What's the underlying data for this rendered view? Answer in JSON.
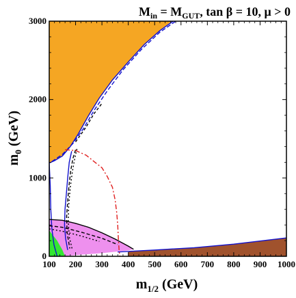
{
  "chart_data": {
    "type": "area",
    "title": {
      "prefix": "M",
      "prefix_sub": "in",
      "eq": " = M",
      "eq_sub": "GUT",
      "rest": ", tan β = 10,  μ > 0"
    },
    "xlabel": {
      "main": "m",
      "sub": "1/2",
      "unit": " (GeV)"
    },
    "ylabel": {
      "main": "m",
      "sub": "0",
      "unit": " (GeV)"
    },
    "xlim": [
      100,
      1000
    ],
    "ylim": [
      0,
      3000
    ],
    "x_ticks": [
      "100",
      "200",
      "300",
      "400",
      "500",
      "600",
      "700",
      "800",
      "900",
      "1000"
    ],
    "y_ticks": [
      "0",
      "1000",
      "2000",
      "3000"
    ],
    "x_tick_values": [
      100,
      200,
      300,
      400,
      500,
      600,
      700,
      800,
      900,
      1000
    ],
    "y_tick_values": [
      0,
      1000,
      2000,
      3000
    ],
    "grid": false,
    "colors": {
      "orange_region": "#F5A623",
      "brown_region": "#A0522D",
      "green_region": "#33E633",
      "pink_region": "#EE90EE",
      "blue_contour": "#1010CC",
      "red_contour": "#E02020",
      "black_contour": "#000000"
    },
    "regions": [
      {
        "id": "orange",
        "points": [
          [
            100,
            3000
          ],
          [
            565,
            3000
          ],
          [
            520,
            2880
          ],
          [
            460,
            2700
          ],
          [
            400,
            2480
          ],
          [
            340,
            2250
          ],
          [
            290,
            2020
          ],
          [
            250,
            1800
          ],
          [
            210,
            1560
          ],
          [
            180,
            1400
          ],
          [
            150,
            1280
          ],
          [
            120,
            1220
          ],
          [
            100,
            1190
          ]
        ]
      },
      {
        "id": "brown",
        "points": [
          [
            400,
            60
          ],
          [
            600,
            95
          ],
          [
            800,
            155
          ],
          [
            1000,
            235
          ],
          [
            1000,
            0
          ],
          [
            400,
            0
          ]
        ]
      },
      {
        "id": "pink",
        "points": [
          [
            100,
            470
          ],
          [
            150,
            460
          ],
          [
            200,
            420
          ],
          [
            250,
            370
          ],
          [
            300,
            300
          ],
          [
            350,
            220
          ],
          [
            400,
            130
          ],
          [
            420,
            90
          ],
          [
            400,
            75
          ],
          [
            300,
            40
          ],
          [
            200,
            15
          ],
          [
            150,
            0
          ],
          [
            100,
            0
          ]
        ]
      },
      {
        "id": "green",
        "points": [
          [
            100,
            330
          ],
          [
            130,
            200
          ],
          [
            150,
            80
          ],
          [
            160,
            0
          ],
          [
            100,
            0
          ]
        ]
      }
    ],
    "lines": [
      {
        "id": "blue-orange-edge",
        "color": "#1010CC",
        "dash": "",
        "points": [
          [
            100,
            1190
          ],
          [
            120,
            1220
          ],
          [
            150,
            1280
          ],
          [
            180,
            1400
          ],
          [
            210,
            1560
          ],
          [
            250,
            1800
          ],
          [
            290,
            2020
          ],
          [
            340,
            2250
          ],
          [
            400,
            2480
          ],
          [
            460,
            2700
          ],
          [
            520,
            2880
          ],
          [
            570,
            3000
          ]
        ]
      },
      {
        "id": "blue-upper-dashed",
        "color": "#1010CC",
        "dash": "6,3",
        "points": [
          [
            110,
            1210
          ],
          [
            150,
            1300
          ],
          [
            190,
            1440
          ],
          [
            230,
            1630
          ],
          [
            270,
            1860
          ],
          [
            320,
            2110
          ],
          [
            380,
            2380
          ],
          [
            450,
            2640
          ],
          [
            520,
            2860
          ],
          [
            580,
            3000
          ]
        ]
      },
      {
        "id": "blue-left-edge",
        "color": "#1010CC",
        "dash": "",
        "points": [
          [
            100,
            1190
          ],
          [
            104,
            900
          ],
          [
            106,
            600
          ],
          [
            110,
            350
          ],
          [
            118,
            150
          ],
          [
            130,
            0
          ]
        ]
      },
      {
        "id": "blue-vertical-inner",
        "color": "#1010CC",
        "dash": "",
        "points": [
          [
            185,
            1340
          ],
          [
            176,
            1200
          ],
          [
            170,
            1000
          ],
          [
            165,
            800
          ],
          [
            160,
            600
          ],
          [
            158,
            400
          ],
          [
            162,
            230
          ],
          [
            170,
            80
          ]
        ]
      },
      {
        "id": "blue-brown-edge",
        "color": "#1010CC",
        "dash": "",
        "points": [
          [
            360,
            55
          ],
          [
            500,
            80
          ],
          [
            650,
            110
          ],
          [
            800,
            155
          ],
          [
            1000,
            235
          ]
        ]
      },
      {
        "id": "black-dashed-vertical",
        "color": "#000000",
        "dash": "5,3",
        "points": [
          [
            200,
            1360
          ],
          [
            190,
            1250
          ],
          [
            182,
            1100
          ],
          [
            175,
            900
          ],
          [
            170,
            700
          ],
          [
            166,
            500
          ],
          [
            168,
            300
          ],
          [
            178,
            100
          ]
        ]
      },
      {
        "id": "black-dotted-vertical",
        "color": "#000000",
        "dash": "2,3",
        "points": [
          [
            205,
            1370
          ],
          [
            197,
            1250
          ],
          [
            188,
            1080
          ],
          [
            180,
            880
          ],
          [
            174,
            650
          ],
          [
            172,
            450
          ],
          [
            176,
            250
          ],
          [
            188,
            80
          ]
        ]
      },
      {
        "id": "black-pink-edge",
        "color": "#000000",
        "dash": "",
        "points": [
          [
            100,
            470
          ],
          [
            150,
            460
          ],
          [
            200,
            420
          ],
          [
            250,
            370
          ],
          [
            300,
            300
          ],
          [
            350,
            220
          ],
          [
            400,
            130
          ],
          [
            420,
            90
          ]
        ]
      },
      {
        "id": "black-dashed-inner",
        "color": "#000000",
        "dash": "5,3",
        "points": [
          [
            100,
            390
          ],
          [
            150,
            370
          ],
          [
            220,
            310
          ],
          [
            300,
            230
          ],
          [
            360,
            150
          ]
        ]
      },
      {
        "id": "black-dotted-inner",
        "color": "#000000",
        "dash": "2,3",
        "points": [
          [
            100,
            350
          ],
          [
            150,
            320
          ],
          [
            220,
            260
          ],
          [
            290,
            190
          ]
        ]
      },
      {
        "id": "black-upper-dashed",
        "color": "#000000",
        "dash": "4,3",
        "points": [
          [
            200,
            1460
          ],
          [
            240,
            1650
          ],
          [
            270,
            1820
          ],
          [
            300,
            1950
          ]
        ]
      },
      {
        "id": "red-dot-dash",
        "color": "#E02020",
        "dash": "7,3,2,3",
        "points": [
          [
            160,
            1360
          ],
          [
            200,
            1350
          ],
          [
            240,
            1290
          ],
          [
            270,
            1210
          ],
          [
            300,
            1130
          ],
          [
            320,
            1020
          ],
          [
            340,
            880
          ],
          [
            350,
            720
          ],
          [
            356,
            560
          ],
          [
            360,
            400
          ],
          [
            362,
            250
          ],
          [
            365,
            80
          ],
          [
            368,
            0
          ]
        ]
      }
    ]
  }
}
